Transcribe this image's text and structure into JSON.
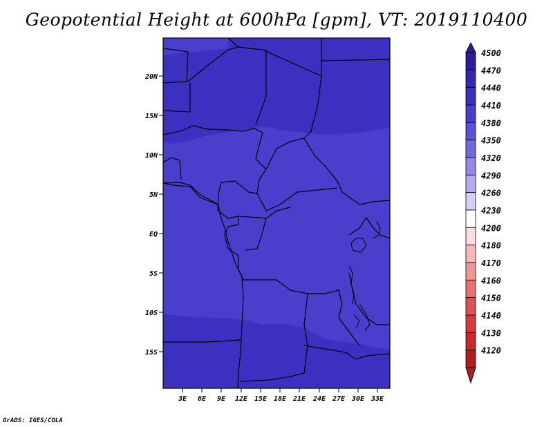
{
  "title": "Geopotential Height at 600hPa [gpm], VT: 2019110400",
  "credit": "GrADS: IGES/COLA",
  "colors": {
    "band_4440": "#3c30c0",
    "band_4410": "#4a3fcd",
    "border": "#000000"
  },
  "map": {
    "lat_labels": [
      "20N",
      "15N",
      "10N",
      "5N",
      "EQ",
      "5S",
      "10S",
      "15S"
    ],
    "lon_labels": [
      "3E",
      "6E",
      "9E",
      "12E",
      "15E",
      "18E",
      "21E",
      "24E",
      "27E",
      "30E",
      "33E"
    ]
  },
  "colorbar": {
    "labels": [
      "4500",
      "4470",
      "4440",
      "4410",
      "4380",
      "4350",
      "4320",
      "4290",
      "4260",
      "4230",
      "4200",
      "4180",
      "4170",
      "4160",
      "4150",
      "4140",
      "4130",
      "4120"
    ],
    "colors": [
      "#2a1b9a",
      "#3528ae",
      "#3c30c0",
      "#4a3fcd",
      "#5b50d8",
      "#7468e0",
      "#9188e8",
      "#b3acf0",
      "#d3cff6",
      "#ffffff",
      "#fcdcdc",
      "#f6b9b9",
      "#ef9696",
      "#e67272",
      "#dd5252",
      "#d33a3a",
      "#c42a2a",
      "#b01f1f"
    ]
  }
}
